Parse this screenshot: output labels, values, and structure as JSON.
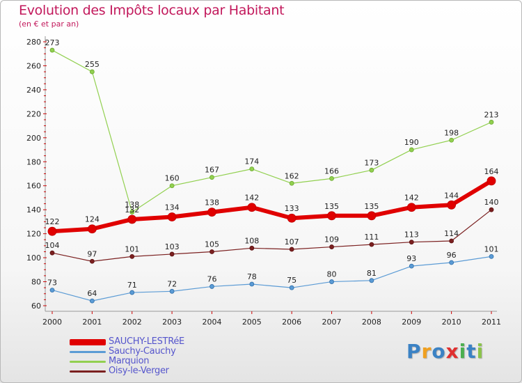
{
  "title": "Evolution des Impôts locaux par Habitant",
  "subtitle": "(en € et par an)",
  "logo": {
    "letters": [
      "P",
      "r",
      "o",
      "x",
      "i",
      "t",
      "i"
    ],
    "colors": [
      "#3b82c4",
      "#f0a020",
      "#3b82c4",
      "#e03030",
      "#4caf50",
      "#3b82c4",
      "#8bc34a"
    ]
  },
  "chart_data": {
    "type": "line",
    "x": [
      "2000",
      "2001",
      "2002",
      "2003",
      "2004",
      "2005",
      "2006",
      "2007",
      "2008",
      "2009",
      "2010",
      "2011"
    ],
    "ylim": [
      60,
      280
    ],
    "yticks": [
      "60",
      "80",
      "100",
      "120",
      "140",
      "160",
      "180",
      "200",
      "220",
      "240",
      "260",
      "280"
    ],
    "grid": false,
    "legend_position": "bottom-left",
    "series": [
      {
        "name": "SAUCHY-LESTRéE",
        "color": "#e00000",
        "width": 6,
        "marker": 6,
        "values": [
          122,
          124,
          132,
          134,
          138,
          142,
          133,
          135,
          135,
          142,
          144,
          164
        ]
      },
      {
        "name": "Sauchy-Cauchy",
        "color": "#5b9bd5",
        "width": 1.2,
        "marker": 3,
        "values": [
          73,
          64,
          71,
          72,
          76,
          78,
          75,
          80,
          81,
          93,
          96,
          101
        ]
      },
      {
        "name": "Marquion",
        "color": "#92d050",
        "width": 1.2,
        "marker": 3,
        "values": [
          273,
          255,
          138,
          160,
          167,
          174,
          162,
          166,
          173,
          190,
          198,
          213
        ]
      },
      {
        "name": "Oisy-le-Verger",
        "color": "#7b2020",
        "width": 1.2,
        "marker": 3,
        "values": [
          104,
          97,
          101,
          103,
          105,
          108,
          107,
          109,
          111,
          113,
          114,
          140
        ]
      }
    ]
  }
}
